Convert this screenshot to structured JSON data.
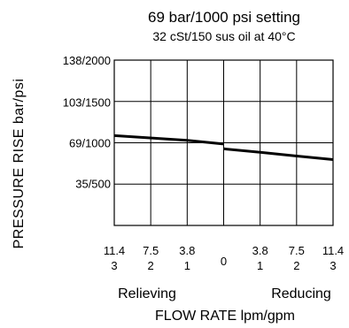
{
  "chart_data": {
    "type": "line",
    "title": "69 bar/1000 psi setting",
    "subtitle": "32 cSt/150 sus oil at 40°C",
    "xlabel": "FLOW RATE lpm/gpm",
    "ylabel": "PRESSURE RISE bar/psi",
    "ylim": [
      0,
      138
    ],
    "y_ticks": [
      {
        "value": 35,
        "label": "35/500"
      },
      {
        "value": 69,
        "label": "69/1000"
      },
      {
        "value": 103,
        "label": "103/1500"
      },
      {
        "value": 138,
        "label": "138/2000"
      }
    ],
    "xlim": [
      -11.4,
      11.4
    ],
    "x_ticks": [
      {
        "value": -11.4,
        "lpm": "11.4",
        "gpm": "3"
      },
      {
        "value": -7.5,
        "lpm": "7.5",
        "gpm": "2"
      },
      {
        "value": -3.8,
        "lpm": "3.8",
        "gpm": "1"
      },
      {
        "value": 0,
        "lpm": "",
        "gpm": "0"
      },
      {
        "value": 3.8,
        "lpm": "3.8",
        "gpm": "1"
      },
      {
        "value": 7.5,
        "lpm": "7.5",
        "gpm": "2"
      },
      {
        "value": 11.4,
        "lpm": "11.4",
        "gpm": "3"
      }
    ],
    "regions": {
      "left": "Relieving",
      "right": "Reducing"
    },
    "grid": true,
    "series": [
      {
        "x": [
          -11.4,
          -7.5,
          -3.8,
          0
        ],
        "y": [
          75,
          73,
          71,
          68
        ]
      },
      {
        "x": [
          0,
          3.8,
          7.5,
          11.4
        ],
        "y": [
          64,
          61,
          58,
          55
        ]
      }
    ]
  }
}
